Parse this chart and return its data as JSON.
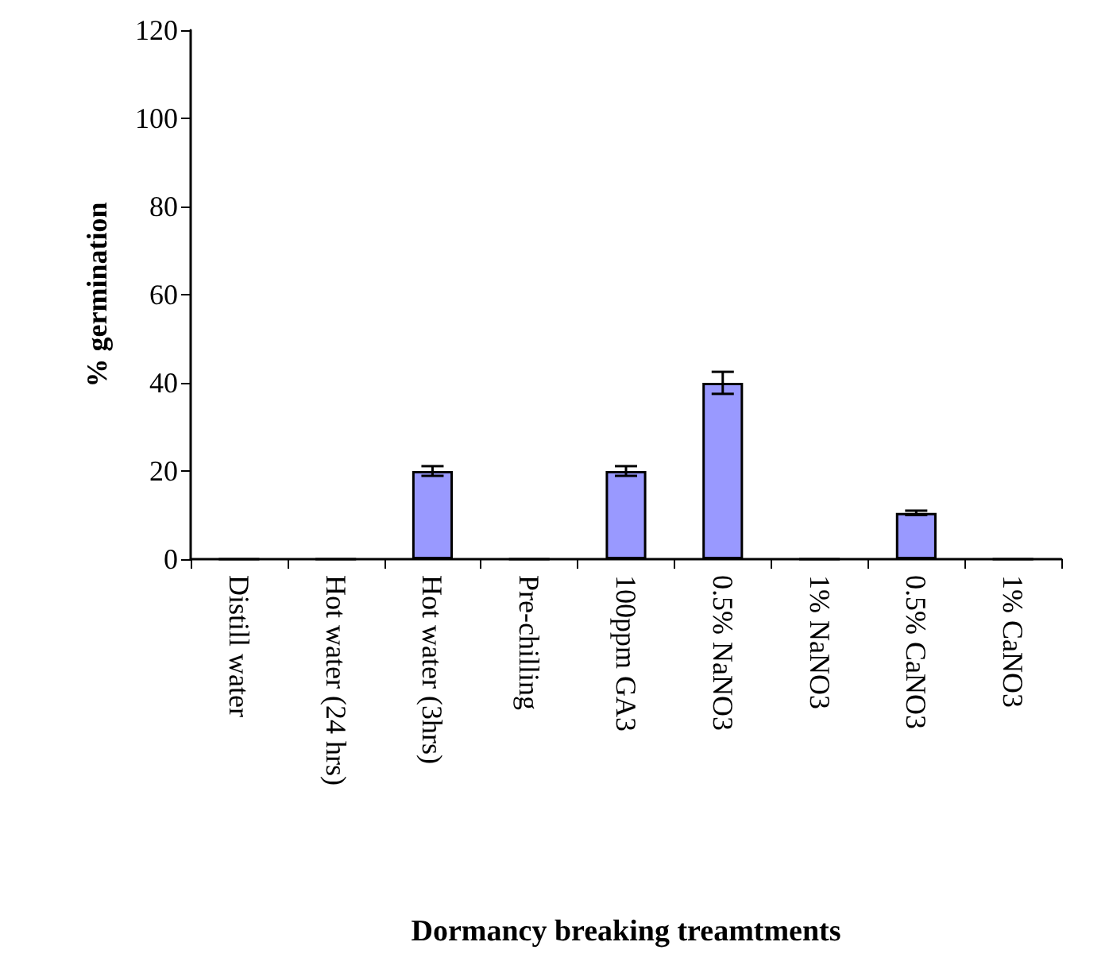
{
  "chart_data": {
    "type": "bar",
    "xlabel": "Dormancy breaking treamtments",
    "ylabel": "% germination",
    "categories": [
      "Distill water",
      "Hot water (24 hrs)",
      "Hot water (3hrs)",
      "Pre-chilling",
      "100ppm GA3",
      "0.5% NaNO3",
      "1% NaNO3",
      "0.5% CaNO3",
      "1% CaNO3"
    ],
    "values": [
      0,
      0,
      20,
      0,
      20,
      40,
      0,
      10.5,
      0
    ],
    "errors": [
      null,
      null,
      1.1,
      null,
      1.1,
      2.5,
      null,
      0.5,
      null
    ],
    "color": "#9999ff",
    "ylim": [
      0,
      120
    ],
    "yticks": [
      0,
      20,
      40,
      60,
      80,
      100,
      120
    ],
    "grid": false
  }
}
